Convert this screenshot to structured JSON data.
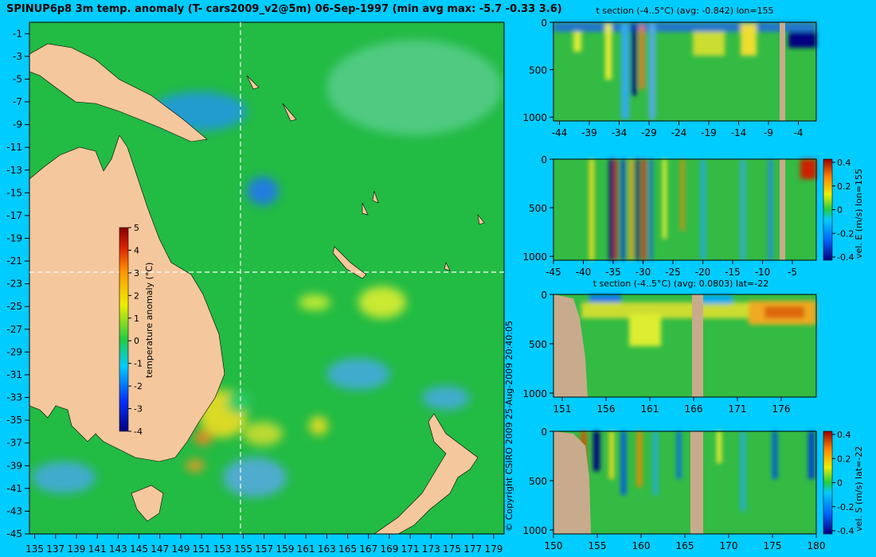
{
  "main_title": "SPINUP6p8 3m temp. anomaly (T- cars2009_v2@5m) 06-Sep-1997 (min avg max: -5.7 -0.33 3.6)",
  "copyright": "© Copyright CSIRO 2009   25-Aug-2009 20:40:05",
  "colors": {
    "background": "#00ccff",
    "land": "#f5c79c",
    "section_land": "#c8ab8c",
    "ocean": "#22bb44"
  },
  "chart_data": [
    {
      "type": "heatmap",
      "name": "map",
      "title": "SPINUP6p8 3m temp. anomaly (T- cars2009_v2@5m) 06-Sep-1997 (min avg max: -5.7 -0.33 3.6)",
      "x_ticks": [
        135,
        137,
        139,
        141,
        143,
        145,
        147,
        149,
        151,
        153,
        155,
        157,
        159,
        161,
        163,
        165,
        167,
        169,
        171,
        173,
        175,
        177,
        179
      ],
      "y_ticks": [
        -1,
        -3,
        -5,
        -7,
        -9,
        -11,
        -13,
        -15,
        -17,
        -19,
        -21,
        -23,
        -25,
        -27,
        -29,
        -31,
        -33,
        -35,
        -37,
        -39,
        -41,
        -43,
        -45
      ],
      "xlim": [
        134.5,
        180
      ],
      "ylim": [
        -45,
        0
      ],
      "crosshair": {
        "lon": 155,
        "lat": -22
      },
      "colorbar": {
        "label": "temperature anomaly (°C)",
        "ticks": [
          5,
          4,
          3,
          2,
          1,
          0,
          -1,
          -2,
          -3,
          -4
        ],
        "range": [
          -4,
          5
        ]
      }
    },
    {
      "type": "heatmap",
      "name": "t-section-lon",
      "title": "t section (-4..5°C) (avg: -0.842) lon=155",
      "x_ticks": [
        -44,
        -39,
        -34,
        -29,
        -24,
        -19,
        -14,
        -9,
        -4
      ],
      "y_ticks": [
        0,
        500,
        1000
      ],
      "xlim": [
        -45,
        -1
      ]
    },
    {
      "type": "heatmap",
      "name": "vel-e-section",
      "title": "",
      "x_ticks": [
        -45,
        -40,
        -35,
        -30,
        -25,
        -20,
        -15,
        -10,
        -5
      ],
      "y_ticks": [
        0,
        500,
        1000
      ],
      "xlim": [
        -45,
        -1
      ],
      "colorbar": {
        "label": "vel. E (m/s) lon=155",
        "ticks": [
          "0.4",
          "0.2",
          "0",
          "-0.2",
          "-0.4"
        ]
      }
    },
    {
      "type": "heatmap",
      "name": "t-section-lat",
      "title": "t section (-4..5°C) (avg: 0.0803) lat=-22",
      "x_ticks": [
        151,
        156,
        161,
        166,
        171,
        176
      ],
      "y_ticks": [
        0,
        500,
        1000
      ],
      "xlim": [
        150,
        180
      ]
    },
    {
      "type": "heatmap",
      "name": "vel-s-section",
      "title": "",
      "x_ticks": [
        150,
        155,
        160,
        165,
        170,
        175,
        180
      ],
      "y_ticks": [
        0,
        500,
        1000
      ],
      "xlim": [
        150,
        180
      ],
      "colorbar": {
        "label": "vel. S (m/s) lat=-22",
        "ticks": [
          "0.4",
          "0.2",
          "0",
          "-0.2",
          "-0.4"
        ]
      }
    }
  ]
}
